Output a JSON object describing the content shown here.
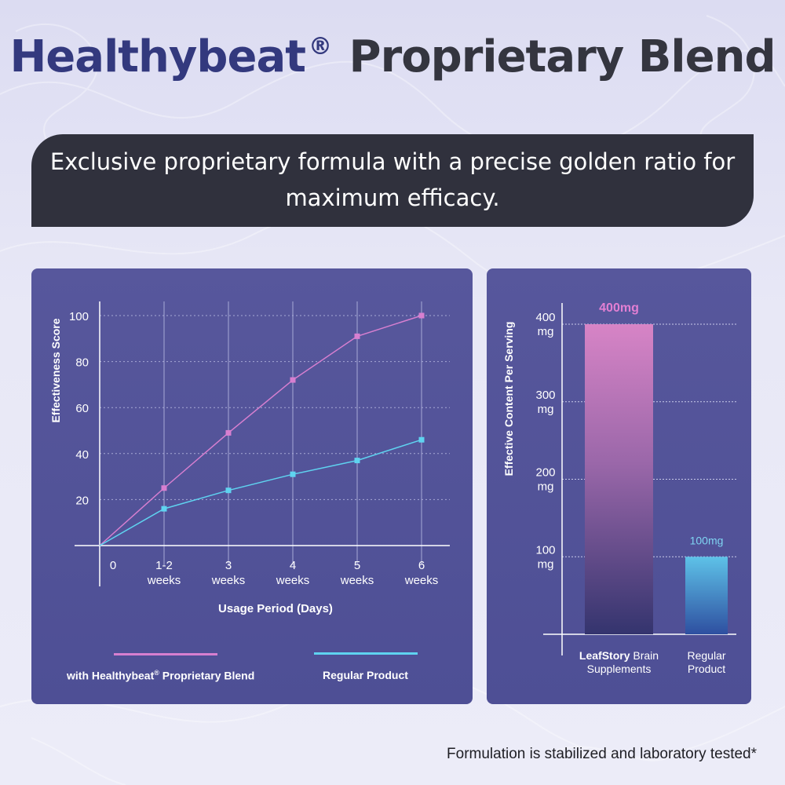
{
  "title": {
    "brand": "Healthybeat",
    "reg": "®",
    "rest": "Proprietary Blend"
  },
  "banner": {
    "line1": "Exclusive proprietary formula with a precise golden ratio for",
    "line2": "maximum efficacy."
  },
  "colors": {
    "pink": "#d77fd0",
    "cyan": "#5fd3f0",
    "panel": "#54549a",
    "banner": "#30313d"
  },
  "chart_data": [
    {
      "type": "line",
      "xlabel": "Usage Period (Days)",
      "ylabel": "Effectiveness Score",
      "categories": [
        [
          "0"
        ],
        [
          "1-2",
          "weeks"
        ],
        [
          "3",
          "weeks"
        ],
        [
          "4",
          "weeks"
        ],
        [
          "5",
          "weeks"
        ],
        [
          "6",
          "weeks"
        ]
      ],
      "yticks": [
        "20",
        "40",
        "60",
        "80",
        "100"
      ],
      "ylim": [
        0,
        100
      ],
      "grid": true,
      "series": [
        {
          "name": "with Healthybeat® Proprietary Blend",
          "values": [
            0,
            25,
            49,
            72,
            91,
            100
          ],
          "color": "#d77fd0"
        },
        {
          "name": "Regular Product",
          "values": [
            0,
            16,
            24,
            31,
            37,
            46
          ],
          "color": "#5fd3f0"
        }
      ],
      "legend": {
        "pink_prefix": "with Healthybeat",
        "pink_reg": "®",
        "pink_suffix": " Proprietary Blend",
        "cyan": "Regular Product",
        "placement": "bottom"
      }
    },
    {
      "type": "bar",
      "ylabel": "Effective Content Per Serving",
      "ylim": [
        0,
        400
      ],
      "yticks": [
        [
          "400",
          "mg"
        ],
        [
          "300",
          "mg"
        ],
        [
          "200",
          "mg"
        ],
        [
          "100",
          "mg"
        ]
      ],
      "grid": true,
      "categories": [
        {
          "bold": "LeafStory",
          "line1_rest": " Brain",
          "line2": "Supplements"
        },
        {
          "bold": "",
          "line1_rest": "Regular",
          "line2": "Product"
        }
      ],
      "values": [
        400,
        100
      ],
      "data_labels": [
        "400mg",
        "100mg"
      ]
    }
  ],
  "footnote": "Formulation is stabilized and laboratory tested*"
}
